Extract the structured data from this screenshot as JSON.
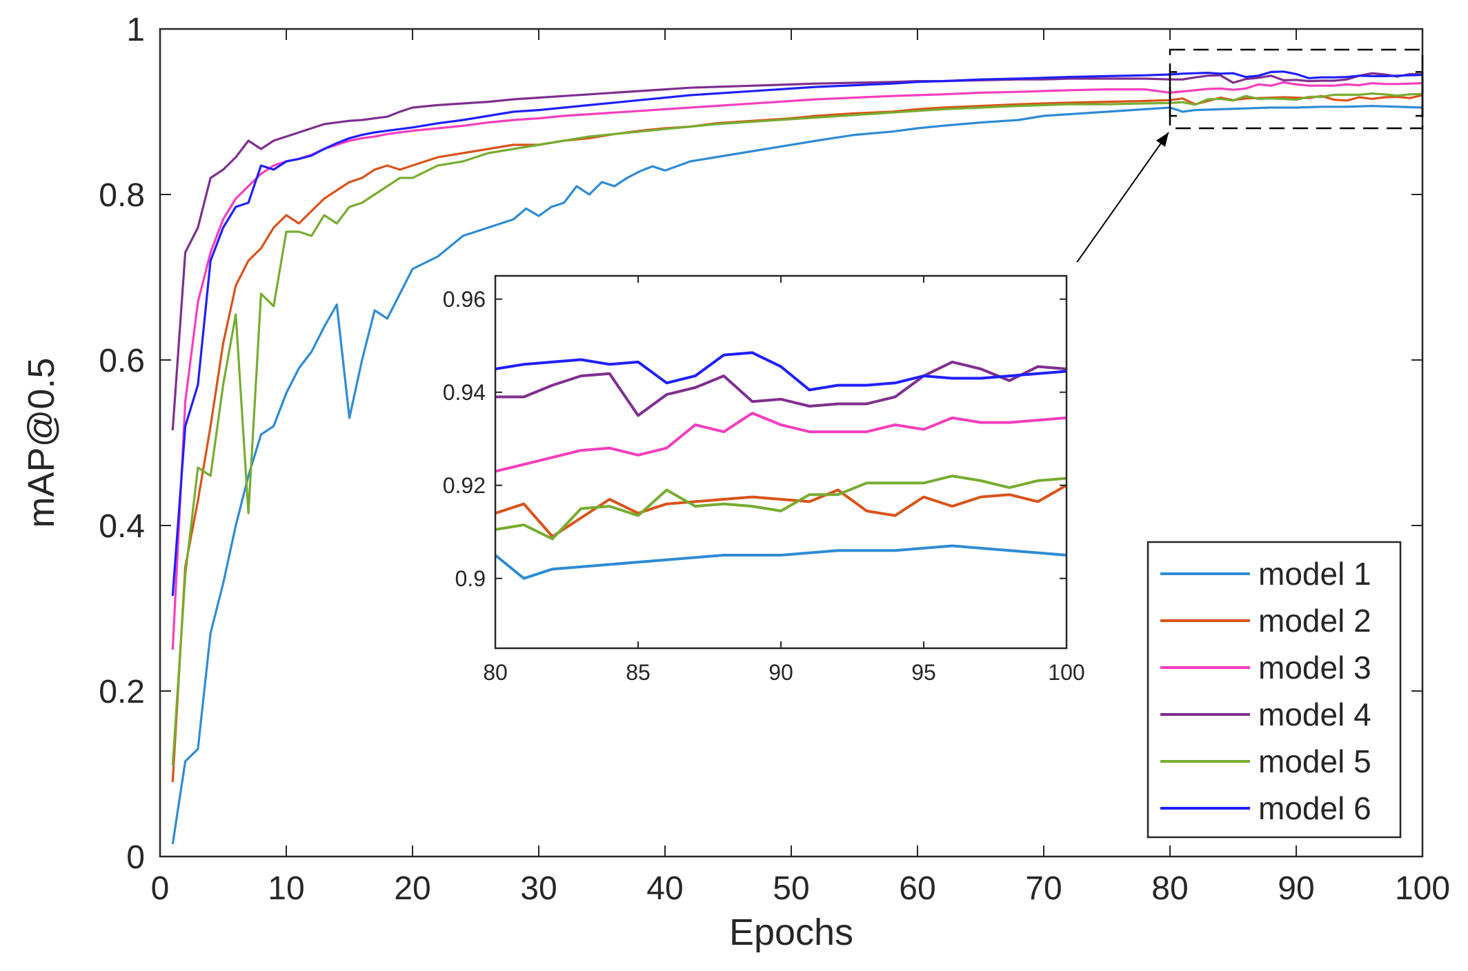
{
  "chart_data": [
    {
      "type": "line",
      "xlabel": "Epochs",
      "ylabel": "mAP@0.5",
      "xlim": [
        0,
        100
      ],
      "ylim": [
        0,
        1
      ],
      "xticks": [
        "0",
        "10",
        "20",
        "30",
        "40",
        "50",
        "60",
        "70",
        "80",
        "90",
        "100"
      ],
      "yticks": [
        "0",
        "0.2",
        "0.4",
        "0.6",
        "0.8",
        "1"
      ],
      "grid": false,
      "legend_position": "bottom-right",
      "zoom_box": {
        "x": [
          80,
          100
        ],
        "y": [
          0.88,
          0.975
        ]
      },
      "series": [
        {
          "name": "model 1",
          "color": "#2e8bd4",
          "x": [
            1,
            2,
            3,
            4,
            5,
            6,
            7,
            8,
            9,
            10,
            11,
            12,
            13,
            14,
            15,
            16,
            17,
            18,
            19,
            20,
            22,
            24,
            26,
            28,
            29,
            30,
            31,
            32,
            33,
            34,
            35,
            36,
            37,
            38,
            39,
            40,
            42,
            44,
            46,
            48,
            50,
            52,
            55,
            58,
            60,
            62,
            65,
            68,
            70,
            72,
            75,
            78,
            80,
            81,
            82,
            84,
            86,
            88,
            90,
            92,
            94,
            96,
            98,
            100
          ],
          "y": [
            0.015,
            0.115,
            0.13,
            0.27,
            0.33,
            0.4,
            0.46,
            0.51,
            0.52,
            0.56,
            0.59,
            0.61,
            0.64,
            0.667,
            0.53,
            0.6,
            0.66,
            0.65,
            0.68,
            0.71,
            0.725,
            0.75,
            0.76,
            0.77,
            0.783,
            0.774,
            0.785,
            0.79,
            0.81,
            0.8,
            0.815,
            0.81,
            0.82,
            0.828,
            0.834,
            0.829,
            0.84,
            0.845,
            0.85,
            0.855,
            0.86,
            0.865,
            0.872,
            0.876,
            0.88,
            0.883,
            0.887,
            0.89,
            0.895,
            0.897,
            0.9,
            0.903,
            0.905,
            0.9,
            0.902,
            0.903,
            0.904,
            0.905,
            0.905,
            0.906,
            0.906,
            0.907,
            0.906,
            0.905
          ]
        },
        {
          "name": "model 2",
          "color": "#d95319",
          "x": [
            1,
            2,
            3,
            4,
            5,
            6,
            7,
            8,
            9,
            10,
            11,
            12,
            13,
            14,
            15,
            16,
            17,
            18,
            19,
            20,
            22,
            24,
            26,
            28,
            30,
            32,
            34,
            36,
            38,
            40,
            42,
            44,
            46,
            48,
            50,
            52,
            55,
            58,
            60,
            62,
            65,
            68,
            70,
            72,
            75,
            78,
            80,
            81,
            82,
            83,
            84,
            85,
            86,
            87,
            88,
            89,
            90,
            91,
            92,
            93,
            94,
            95,
            96,
            97,
            98,
            99,
            100
          ],
          "y": [
            0.09,
            0.35,
            0.43,
            0.52,
            0.62,
            0.69,
            0.72,
            0.735,
            0.76,
            0.775,
            0.765,
            0.78,
            0.795,
            0.805,
            0.815,
            0.82,
            0.83,
            0.835,
            0.83,
            0.835,
            0.845,
            0.85,
            0.855,
            0.86,
            0.86,
            0.865,
            0.868,
            0.873,
            0.877,
            0.88,
            0.882,
            0.886,
            0.888,
            0.89,
            0.892,
            0.895,
            0.898,
            0.9,
            0.903,
            0.905,
            0.907,
            0.909,
            0.91,
            0.911,
            0.912,
            0.913,
            0.914,
            0.916,
            0.909,
            0.913,
            0.917,
            0.914,
            0.916,
            0.9165,
            0.917,
            0.9175,
            0.917,
            0.9165,
            0.919,
            0.9145,
            0.9135,
            0.9175,
            0.9155,
            0.9175,
            0.918,
            0.9165,
            0.92
          ]
        },
        {
          "name": "model 3",
          "color": "#f53dbd",
          "x": [
            1,
            2,
            3,
            4,
            5,
            6,
            7,
            8,
            9,
            10,
            11,
            12,
            13,
            14,
            15,
            16,
            17,
            18,
            19,
            20,
            22,
            24,
            26,
            28,
            30,
            32,
            34,
            36,
            38,
            40,
            42,
            44,
            46,
            48,
            50,
            52,
            55,
            58,
            60,
            62,
            65,
            68,
            70,
            72,
            75,
            78,
            80,
            81,
            82,
            83,
            84,
            85,
            86,
            87,
            88,
            89,
            90,
            91,
            92,
            93,
            94,
            95,
            96,
            97,
            98,
            99,
            100
          ],
          "y": [
            0.25,
            0.55,
            0.67,
            0.73,
            0.77,
            0.795,
            0.81,
            0.825,
            0.835,
            0.84,
            0.843,
            0.848,
            0.855,
            0.86,
            0.865,
            0.868,
            0.87,
            0.873,
            0.875,
            0.877,
            0.88,
            0.883,
            0.887,
            0.89,
            0.892,
            0.895,
            0.897,
            0.899,
            0.901,
            0.903,
            0.905,
            0.907,
            0.909,
            0.911,
            0.913,
            0.915,
            0.917,
            0.919,
            0.92,
            0.921,
            0.923,
            0.924,
            0.925,
            0.926,
            0.927,
            0.927,
            0.923,
            0.9245,
            0.926,
            0.9275,
            0.928,
            0.9265,
            0.928,
            0.933,
            0.9315,
            0.9355,
            0.933,
            0.9315,
            0.9315,
            0.9315,
            0.933,
            0.932,
            0.9345,
            0.9335,
            0.9335,
            0.934,
            0.9345
          ]
        },
        {
          "name": "model 4",
          "color": "#7e2f8e",
          "x": [
            1,
            2,
            3,
            4,
            5,
            6,
            7,
            8,
            9,
            10,
            11,
            12,
            13,
            14,
            15,
            16,
            17,
            18,
            19,
            20,
            22,
            24,
            26,
            28,
            30,
            32,
            34,
            36,
            38,
            40,
            42,
            44,
            46,
            48,
            50,
            52,
            55,
            58,
            60,
            62,
            65,
            68,
            70,
            72,
            75,
            78,
            80,
            81,
            82,
            83,
            84,
            85,
            86,
            87,
            88,
            89,
            90,
            91,
            92,
            93,
            94,
            95,
            96,
            97,
            98,
            99,
            100
          ],
          "y": [
            0.515,
            0.73,
            0.76,
            0.82,
            0.83,
            0.845,
            0.865,
            0.855,
            0.865,
            0.87,
            0.875,
            0.88,
            0.885,
            0.887,
            0.889,
            0.89,
            0.892,
            0.894,
            0.9,
            0.905,
            0.908,
            0.91,
            0.912,
            0.915,
            0.917,
            0.919,
            0.921,
            0.923,
            0.925,
            0.927,
            0.929,
            0.93,
            0.931,
            0.932,
            0.933,
            0.934,
            0.935,
            0.936,
            0.937,
            0.937,
            0.938,
            0.939,
            0.939,
            0.94,
            0.94,
            0.94,
            0.939,
            0.939,
            0.9415,
            0.9435,
            0.944,
            0.935,
            0.9395,
            0.941,
            0.9435,
            0.938,
            0.9385,
            0.937,
            0.9375,
            0.9375,
            0.939,
            0.9435,
            0.9465,
            0.945,
            0.9425,
            0.9455,
            0.945
          ]
        },
        {
          "name": "model 5",
          "color": "#77ac30",
          "x": [
            1,
            2,
            3,
            4,
            5,
            6,
            7,
            8,
            9,
            10,
            11,
            12,
            13,
            14,
            15,
            16,
            17,
            18,
            19,
            20,
            22,
            24,
            26,
            28,
            30,
            32,
            34,
            36,
            38,
            40,
            42,
            44,
            46,
            48,
            50,
            52,
            55,
            58,
            60,
            62,
            65,
            68,
            70,
            72,
            75,
            78,
            80,
            81,
            82,
            83,
            84,
            85,
            86,
            87,
            88,
            89,
            90,
            91,
            92,
            93,
            94,
            95,
            96,
            97,
            98,
            99,
            100
          ],
          "y": [
            0.11,
            0.34,
            0.47,
            0.46,
            0.57,
            0.655,
            0.415,
            0.68,
            0.665,
            0.755,
            0.755,
            0.75,
            0.775,
            0.765,
            0.785,
            0.79,
            0.8,
            0.81,
            0.82,
            0.82,
            0.835,
            0.84,
            0.85,
            0.855,
            0.86,
            0.865,
            0.87,
            0.873,
            0.876,
            0.879,
            0.882,
            0.885,
            0.887,
            0.889,
            0.891,
            0.893,
            0.896,
            0.899,
            0.901,
            0.903,
            0.905,
            0.907,
            0.908,
            0.909,
            0.909,
            0.91,
            0.9105,
            0.9115,
            0.9085,
            0.915,
            0.9155,
            0.9135,
            0.919,
            0.9155,
            0.916,
            0.9155,
            0.9145,
            0.918,
            0.918,
            0.9205,
            0.9205,
            0.9205,
            0.922,
            0.921,
            0.9195,
            0.921,
            0.9215
          ]
        },
        {
          "name": "model 6",
          "color": "#1f1fff",
          "x": [
            1,
            2,
            3,
            4,
            5,
            6,
            7,
            8,
            9,
            10,
            11,
            12,
            13,
            14,
            15,
            16,
            17,
            18,
            19,
            20,
            22,
            24,
            26,
            28,
            30,
            32,
            34,
            36,
            38,
            40,
            42,
            44,
            46,
            48,
            50,
            52,
            55,
            58,
            60,
            62,
            65,
            68,
            70,
            72,
            75,
            78,
            80,
            81,
            82,
            83,
            84,
            85,
            86,
            87,
            88,
            89,
            90,
            91,
            92,
            93,
            94,
            95,
            96,
            97,
            98,
            99,
            100
          ],
          "y": [
            0.315,
            0.52,
            0.57,
            0.72,
            0.76,
            0.785,
            0.79,
            0.835,
            0.83,
            0.84,
            0.843,
            0.847,
            0.855,
            0.862,
            0.868,
            0.872,
            0.875,
            0.877,
            0.879,
            0.881,
            0.886,
            0.89,
            0.895,
            0.9,
            0.902,
            0.905,
            0.908,
            0.911,
            0.914,
            0.917,
            0.92,
            0.922,
            0.924,
            0.926,
            0.928,
            0.93,
            0.932,
            0.934,
            0.936,
            0.937,
            0.939,
            0.94,
            0.941,
            0.942,
            0.943,
            0.944,
            0.945,
            0.946,
            0.9465,
            0.947,
            0.946,
            0.9465,
            0.942,
            0.9435,
            0.948,
            0.9485,
            0.9455,
            0.9405,
            0.9415,
            0.9415,
            0.942,
            0.9435,
            0.943,
            0.943,
            0.9435,
            0.944,
            0.9445
          ]
        }
      ]
    },
    {
      "type": "line",
      "xlim": [
        80,
        100
      ],
      "ylim": [
        0.885,
        0.965
      ],
      "xticks": [
        "80",
        "85",
        "90",
        "95",
        "100"
      ],
      "yticks": [
        "0.9",
        "0.92",
        "0.94",
        "0.96"
      ],
      "grid": false
    }
  ]
}
